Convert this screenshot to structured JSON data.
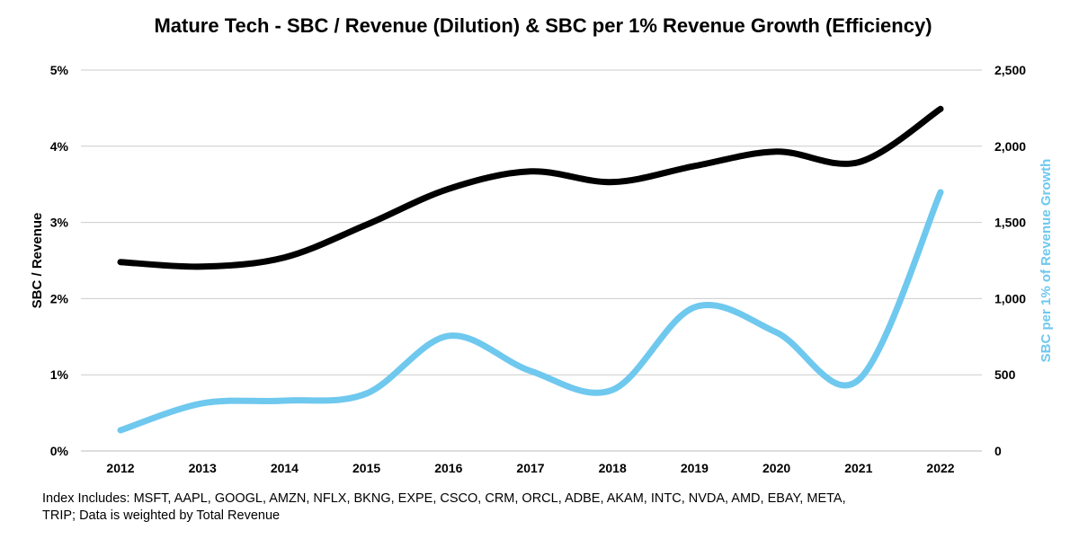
{
  "chart_data": {
    "type": "line",
    "title": "Mature Tech - SBC / Revenue (Dilution) & SBC per 1% Revenue Growth (Efficiency)",
    "x": [
      "2012",
      "2013",
      "2014",
      "2015",
      "2016",
      "2017",
      "2018",
      "2019",
      "2020",
      "2021",
      "2022"
    ],
    "ylabel": "SBC / Revenue",
    "y2label": "SBC per 1% of Revenue Growth",
    "ylim": [
      0,
      5
    ],
    "y2lim": [
      0,
      2500
    ],
    "yticks": [
      "0%",
      "1%",
      "2%",
      "3%",
      "4%",
      "5%"
    ],
    "y2ticks": [
      "0",
      "500",
      "1,000",
      "1,500",
      "2,000",
      "2,500"
    ],
    "grid": true,
    "series": [
      {
        "name": "SBC / Revenue",
        "axis": "left",
        "color": "#000000",
        "values": [
          2.48,
          2.42,
          2.54,
          2.97,
          3.44,
          3.67,
          3.53,
          3.74,
          3.93,
          3.79,
          4.49
        ]
      },
      {
        "name": "SBC per 1% of Revenue Growth",
        "axis": "right",
        "color": "#6FC8EE",
        "values": [
          136,
          313,
          330,
          377,
          755,
          525,
          401,
          943,
          778,
          466,
          1698
        ]
      }
    ],
    "note": "Index Includes: MSFT, AAPL, GOOGL, AMZN, NFLX, BKNG, EXPE, CSCO, CRM, ORCL, ADBE, AKAM, INTC, NVDA, AMD, EBAY, META, TRIP; Data is weighted by Total Revenue"
  }
}
